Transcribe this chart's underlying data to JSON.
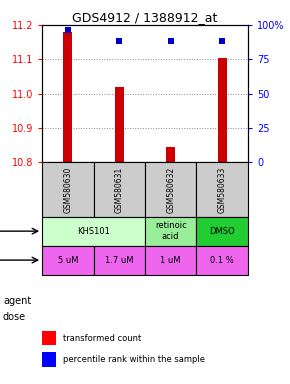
{
  "title": "GDS4912 / 1388912_at",
  "samples": [
    "GSM580630",
    "GSM580631",
    "GSM580632",
    "GSM580633"
  ],
  "bar_values": [
    11.18,
    11.02,
    10.845,
    11.105
  ],
  "bar_bottom": 10.8,
  "percentile_values": [
    96,
    88,
    88,
    88
  ],
  "ylim": [
    10.8,
    11.2
  ],
  "yticks": [
    10.8,
    10.9,
    11.0,
    11.1,
    11.2
  ],
  "bar_color": "#cc0000",
  "percentile_color": "#0000cc",
  "agent_data": [
    [
      0,
      2,
      "KHS101",
      "#ccffcc"
    ],
    [
      2,
      3,
      "retinoic\nacid",
      "#99ee99"
    ],
    [
      3,
      4,
      "DMSO",
      "#22cc33"
    ]
  ],
  "dose_labels": [
    "5 uM",
    "1.7 uM",
    "1 uM",
    "0.1 %"
  ],
  "dose_color": "#ee66ee",
  "sample_bg": "#cccccc",
  "x_positions": [
    0.5,
    1.5,
    2.5,
    3.5
  ],
  "bar_width": 0.18
}
